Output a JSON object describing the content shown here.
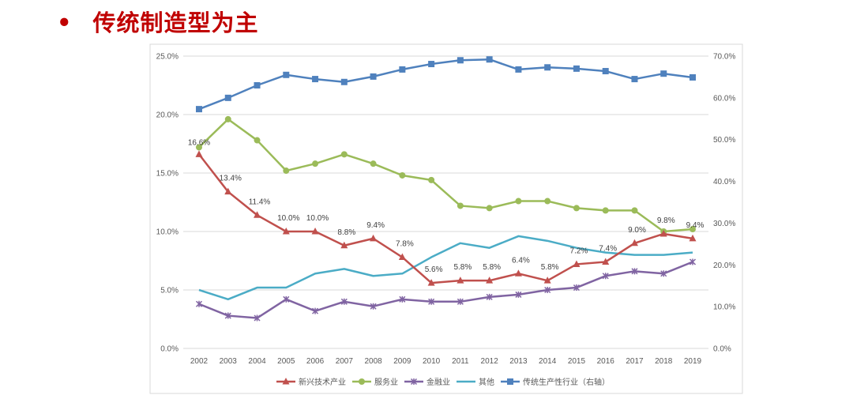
{
  "slide": {
    "bullet": "•",
    "title": "传统制造型为主"
  },
  "chart_data": {
    "type": "line",
    "title": "",
    "categories": [
      "2002",
      "2003",
      "2004",
      "2005",
      "2006",
      "2007",
      "2008",
      "2009",
      "2010",
      "2011",
      "2012",
      "2013",
      "2014",
      "2015",
      "2016",
      "2017",
      "2018",
      "2019"
    ],
    "y_left": {
      "range": [
        0,
        25
      ],
      "ticks": [
        "0.0%",
        "5.0%",
        "10.0%",
        "15.0%",
        "20.0%",
        "25.0%"
      ]
    },
    "y_right": {
      "range": [
        0,
        70
      ],
      "ticks": [
        "0.0%",
        "10.0%",
        "20.0%",
        "30.0%",
        "40.0%",
        "50.0%",
        "60.0%",
        "70.0%"
      ]
    },
    "grid": true,
    "legend_position": "bottom",
    "series": [
      {
        "name": "新兴技术产业",
        "axis": "left",
        "color": "#C0504D",
        "marker": "triangle",
        "values": [
          16.6,
          13.4,
          11.4,
          10.0,
          10.0,
          8.8,
          9.4,
          7.8,
          5.6,
          5.8,
          5.8,
          6.4,
          5.8,
          7.2,
          7.4,
          9.0,
          9.8,
          9.4
        ],
        "data_labels": [
          "16.6%",
          "13.4%",
          "11.4%",
          "10.0%",
          "10.0%",
          "8.8%",
          "9.4%",
          "7.8%",
          "5.6%",
          "5.8%",
          "5.8%",
          "6.4%",
          "5.8%",
          "7.2%",
          "7.4%",
          "9.0%",
          "9.8%",
          "9.4%"
        ]
      },
      {
        "name": "服务业",
        "axis": "left",
        "color": "#9BBB59",
        "marker": "circle",
        "values": [
          17.2,
          19.6,
          17.8,
          15.2,
          15.8,
          16.6,
          15.8,
          14.8,
          14.4,
          12.2,
          12.0,
          12.6,
          12.6,
          12.0,
          11.8,
          11.8,
          10.0,
          10.2
        ]
      },
      {
        "name": "金融业",
        "axis": "left",
        "color": "#8064A2",
        "marker": "x",
        "values": [
          3.8,
          2.8,
          2.6,
          4.2,
          3.2,
          4.0,
          3.6,
          4.2,
          4.0,
          4.0,
          4.4,
          4.6,
          5.0,
          5.2,
          6.2,
          6.6,
          6.4,
          7.4
        ]
      },
      {
        "name": "其他",
        "axis": "left",
        "color": "#4BACC6",
        "marker": "none",
        "values": [
          5.0,
          4.2,
          5.2,
          5.2,
          6.4,
          6.8,
          6.2,
          6.4,
          7.8,
          9.0,
          8.6,
          9.6,
          9.2,
          8.6,
          8.2,
          8.0,
          8.0,
          8.2
        ]
      },
      {
        "name": "传统生产性行业（右轴）",
        "axis": "right",
        "color": "#4F81BD",
        "marker": "square",
        "values": [
          57.3,
          60.0,
          63.0,
          65.5,
          64.5,
          63.8,
          65.1,
          66.8,
          68.1,
          69.0,
          69.2,
          66.8,
          67.3,
          67.0,
          66.4,
          64.5,
          65.8,
          64.9
        ]
      }
    ]
  }
}
